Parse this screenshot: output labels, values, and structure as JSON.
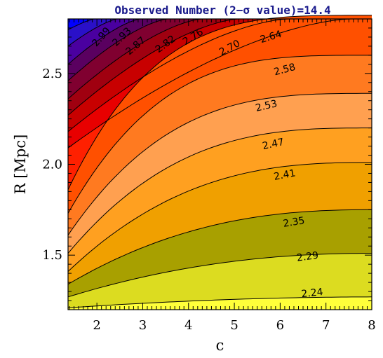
{
  "chart_data": {
    "type": "contour",
    "title": "Observed Number (2−σ value)=14.4",
    "xlabel": "c",
    "ylabel": "R [Mpc]",
    "xlim": [
      1.37,
      8.0
    ],
    "ylim": [
      1.2,
      2.8
    ],
    "xticks": [
      2,
      3,
      4,
      5,
      6,
      7,
      8
    ],
    "yticks": [
      1.5,
      2.0,
      2.5
    ],
    "xtick_labels": [
      "2",
      "3",
      "4",
      "5",
      "6",
      "7",
      "8"
    ],
    "ytick_labels": [
      "1.5",
      "2.0",
      "2.5"
    ],
    "levels": [
      {
        "label": "2.24",
        "at": [
          6.7,
          1.29
        ],
        "right_edge_y": 1.27
      },
      {
        "label": "2.29",
        "at": [
          6.6,
          1.49
        ],
        "right_edge_y": 1.51
      },
      {
        "label": "2.35",
        "at": [
          6.3,
          1.68
        ],
        "right_edge_y": 1.75
      },
      {
        "label": "2.41",
        "at": [
          6.1,
          1.94
        ],
        "right_edge_y": 2.01
      },
      {
        "label": "2.47",
        "at": [
          5.85,
          2.11
        ],
        "right_edge_y": 2.2
      },
      {
        "label": "2.53",
        "at": [
          5.7,
          2.32
        ],
        "right_edge_y": 2.39
      },
      {
        "label": "2.58",
        "at": [
          6.1,
          2.52
        ],
        "right_edge_y": 2.6
      },
      {
        "label": "2.64",
        "at": [
          5.8,
          2.7
        ],
        "right_edge_y": 2.82
      },
      {
        "label": "2.70",
        "at": [
          4.9,
          2.64
        ],
        "right_edge_y": null
      },
      {
        "label": "2.76",
        "at": [
          4.1,
          2.7
        ],
        "right_edge_y": null
      },
      {
        "label": "2.82",
        "at": [
          3.5,
          2.66
        ],
        "right_edge_y": null
      },
      {
        "label": "2.87",
        "at": [
          2.85,
          2.65
        ],
        "right_edge_y": null
      },
      {
        "label": "2.93",
        "at": [
          2.55,
          2.7
        ],
        "right_edge_y": null
      },
      {
        "label": "2.99",
        "at": [
          2.1,
          2.7
        ],
        "right_edge_y": null
      }
    ],
    "extra_contours_left_edge_y": [
      2.46,
      2.55,
      2.65,
      2.74
    ],
    "band_colors": [
      "#ffff3a",
      "#dcdc20",
      "#a8a000",
      "#f0a000",
      "#ffa020",
      "#ffa050",
      "#ff7a20",
      "#ff5000",
      "#ff2000",
      "#e80000",
      "#c80000",
      "#a00010",
      "#800030",
      "#5a0060",
      "#4a00a0",
      "#2a10c8",
      "#0000ff"
    ],
    "grid": false,
    "legend": "none"
  }
}
